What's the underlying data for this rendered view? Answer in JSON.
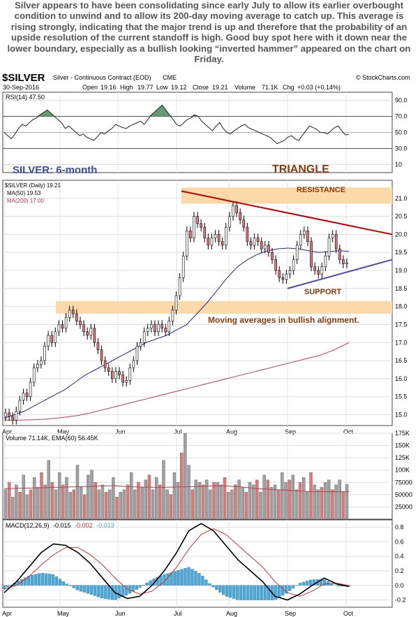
{
  "caption": "Silver appears to have been consolidating since early July to allow its earlier overbought condition to unwind and to allow its 200-day moving average to catch up. This average is rising strongly, indicating that the major trend is up and therefore that the probability of an upside resolution of the current standoff is high. Good buy spot here with it down near the lower boundary, especially as a bullish looking “inverted hammer” appeared on the chart on Friday.",
  "header": {
    "symbol": "$SILVER",
    "name": "Silver - Continuous Contract (EOD)",
    "exchange": "CME",
    "credit": "© StockCharts.com",
    "date": "30-Sep-2016",
    "open_label": "Open",
    "open": "19.16",
    "high_label": "High",
    "high": "19.77",
    "low_label": "Low",
    "low": "19.12",
    "close_label": "Close",
    "close": "19.21",
    "volume_label": "Volume",
    "volume": "71.1K",
    "chg_label": "Chg",
    "chg": "+0.03 (+0.14%)"
  },
  "rsi_legend": "RSI(14) 47.50",
  "price_legend": {
    "main": "$SILVER (Daily) 19.21",
    "ma50": "MA(50) 19.53",
    "ma200": "MA(200) 17.00"
  },
  "annotations": {
    "period": "SILVER: 6-month",
    "pattern": "TRIANGLE",
    "resistance": "RESISTANCE",
    "support": "SUPPORT",
    "note": "Moving averages in bullish alignment."
  },
  "volume_legend": "Volume 71.14K, EMA(60) 56.45K",
  "macd_legend": {
    "prefix": "MACD(12,26,9)",
    "macd": "-0.015",
    "signal": "-0.002",
    "hist": "-0.013"
  },
  "colors": {
    "candle_up": "#ffffff",
    "candle_down": "#e8737a",
    "ma50": "#1f2a8c",
    "ma200": "#c0394d",
    "resistance_line": "#c00000",
    "support_line": "#4a4ab0",
    "band": "#fbd9a8",
    "annotation_blue": "#3a4aa8",
    "annotation_brown": "#8b3a0e",
    "rsi_fill": "#4a8a5a",
    "vol_up": "#a0a0a0",
    "vol_down": "#e07878",
    "ema_vol": "#c0394d",
    "macd_line": "#000000",
    "signal_line": "#d03030",
    "macd_hist": "#4aa8d8"
  },
  "chart_data": [
    {
      "type": "line",
      "panel": "RSI",
      "ylim": [
        0,
        100
      ],
      "yticks": [
        10,
        30,
        50,
        70,
        90
      ],
      "series": [
        {
          "name": "RSI(14)",
          "values": [
            50,
            46,
            42,
            48,
            55,
            60,
            58,
            62,
            66,
            68,
            72,
            75,
            78,
            74,
            70,
            66,
            62,
            55,
            58,
            54,
            50,
            46,
            48,
            44,
            42,
            40,
            45,
            50,
            48,
            52,
            55,
            60,
            58,
            56,
            55,
            58,
            60,
            62,
            64,
            60,
            66,
            72,
            76,
            80,
            84,
            78,
            72,
            66,
            60,
            58,
            62,
            66,
            68,
            72,
            70,
            64,
            60,
            56,
            52,
            58,
            62,
            55,
            50,
            48,
            52,
            55,
            58,
            60,
            56,
            54,
            52,
            50,
            48,
            46,
            44,
            40,
            36,
            38,
            40,
            44,
            46,
            42,
            40,
            46,
            52,
            58,
            56,
            54,
            50,
            50,
            48,
            52,
            56,
            58,
            52,
            47,
            47.5
          ]
        }
      ]
    },
    {
      "type": "line",
      "panel": "Price",
      "ylim": [
        14.7,
        21.5
      ],
      "yticks": [
        15.0,
        15.5,
        16.0,
        16.5,
        17.0,
        17.5,
        18.0,
        18.5,
        19.0,
        19.5,
        20.0,
        20.5,
        21.0
      ],
      "xticks": [
        "Apr",
        "May",
        "Jun",
        "Jul",
        "Aug",
        "Sep",
        "Oct"
      ],
      "series": [
        {
          "name": "$SILVER",
          "values": [
            15.05,
            14.95,
            14.85,
            15.1,
            15.4,
            15.6,
            15.5,
            15.9,
            16.3,
            16.4,
            16.5,
            16.9,
            17.2,
            17.0,
            17.3,
            17.5,
            17.4,
            17.7,
            17.9,
            17.8,
            17.6,
            17.5,
            17.3,
            17.2,
            17.4,
            17.0,
            16.8,
            16.5,
            16.3,
            16.2,
            16.0,
            16.2,
            16.1,
            15.9,
            15.95,
            16.3,
            16.5,
            16.9,
            17.0,
            17.3,
            17.4,
            17.5,
            17.3,
            17.5,
            17.4,
            17.3,
            17.6,
            17.9,
            18.3,
            18.8,
            19.4,
            20.1,
            19.9,
            20.5,
            20.3,
            20.2,
            19.9,
            19.7,
            19.9,
            20.0,
            19.8,
            19.7,
            20.2,
            20.5,
            20.8,
            20.6,
            20.4,
            20.2,
            19.8,
            19.7,
            19.9,
            19.8,
            19.6,
            19.7,
            19.5,
            19.3,
            19.0,
            18.8,
            18.75,
            18.9,
            19.0,
            19.3,
            19.7,
            20.0,
            20.1,
            19.8,
            19.1,
            19.0,
            18.9,
            19.1,
            19.4,
            19.9,
            20.0,
            19.6,
            19.3,
            19.18,
            19.21
          ]
        },
        {
          "name": "MA(50)",
          "values": [
            14.9,
            15.0,
            15.1,
            15.25,
            15.4,
            15.55,
            15.7,
            15.9,
            16.1,
            16.25,
            16.4,
            16.55,
            16.7,
            16.85,
            17.0,
            17.1,
            17.2,
            17.35,
            17.5,
            17.8,
            18.1,
            18.45,
            18.8,
            19.1,
            19.3,
            19.45,
            19.55,
            19.6,
            19.62,
            19.6,
            19.55,
            19.5,
            19.52,
            19.55,
            19.53
          ]
        },
        {
          "name": "MA(200)",
          "values": [
            14.85,
            14.85,
            14.86,
            14.88,
            14.92,
            14.97,
            15.05,
            15.15,
            15.25,
            15.35,
            15.45,
            15.55,
            15.65,
            15.75,
            15.85,
            15.95,
            16.05,
            16.15,
            16.25,
            16.35,
            16.45,
            16.55,
            16.65,
            16.8,
            17.0
          ]
        },
        {
          "name": "Resistance",
          "values": [
            21.2,
            20.0
          ]
        },
        {
          "name": "Support",
          "values": [
            18.5,
            19.3
          ]
        }
      ]
    },
    {
      "type": "bar",
      "panel": "Volume",
      "ylim": [
        0,
        175000
      ],
      "yticks": [
        "25000",
        "50000",
        "75000",
        "100K",
        "125K",
        "150K",
        "175K"
      ],
      "series": [
        {
          "name": "Volume",
          "values": [
            60,
            75,
            45,
            70,
            55,
            90,
            50,
            60,
            85,
            65,
            95,
            70,
            120,
            75,
            60,
            95,
            70,
            85,
            55,
            60,
            110,
            65,
            50,
            90,
            100,
            75,
            60,
            70,
            55,
            60,
            85,
            45,
            55,
            60,
            70,
            95,
            60,
            75,
            65,
            80,
            90,
            60,
            85,
            70,
            120,
            60,
            50,
            95,
            75,
            135,
            175,
            110,
            60,
            80,
            75,
            70,
            80,
            60,
            75,
            75,
            70,
            85,
            55,
            60,
            70,
            80,
            65,
            55,
            75,
            70,
            80,
            55,
            90,
            80,
            65,
            70,
            60,
            95,
            75,
            80,
            90,
            60,
            75,
            85,
            55,
            95,
            70,
            60,
            65,
            75,
            80,
            60,
            70,
            80,
            55,
            71
          ]
        },
        {
          "name": "EMA(60)",
          "values": [
            62,
            63,
            64,
            65,
            66,
            67,
            68,
            66,
            65,
            65,
            66,
            67,
            68,
            66,
            62,
            60,
            58,
            56,
            56,
            56
          ]
        }
      ]
    },
    {
      "type": "line",
      "panel": "MACD",
      "ylim": [
        -0.3,
        0.9
      ],
      "yticks": [
        -0.2,
        0.0,
        0.2,
        0.4,
        0.6,
        0.8
      ],
      "series": [
        {
          "name": "MACD(12,26,9)",
          "values": [
            -0.1,
            0.05,
            0.25,
            0.45,
            0.57,
            0.55,
            0.45,
            0.3,
            0.1,
            -0.1,
            -0.18,
            -0.15,
            0.0,
            0.2,
            0.45,
            0.75,
            0.85,
            0.75,
            0.55,
            0.35,
            0.2,
            0.05,
            -0.15,
            -0.2,
            -0.12,
            0.0,
            0.1,
            0.02,
            -0.015
          ]
        },
        {
          "name": "Signal",
          "values": [
            -0.05,
            0.0,
            0.12,
            0.28,
            0.42,
            0.52,
            0.52,
            0.42,
            0.28,
            0.1,
            -0.05,
            -0.12,
            -0.08,
            0.05,
            0.25,
            0.5,
            0.7,
            0.78,
            0.7,
            0.55,
            0.4,
            0.25,
            0.05,
            -0.1,
            -0.15,
            -0.08,
            0.02,
            0.03,
            -0.002
          ]
        }
      ]
    }
  ]
}
